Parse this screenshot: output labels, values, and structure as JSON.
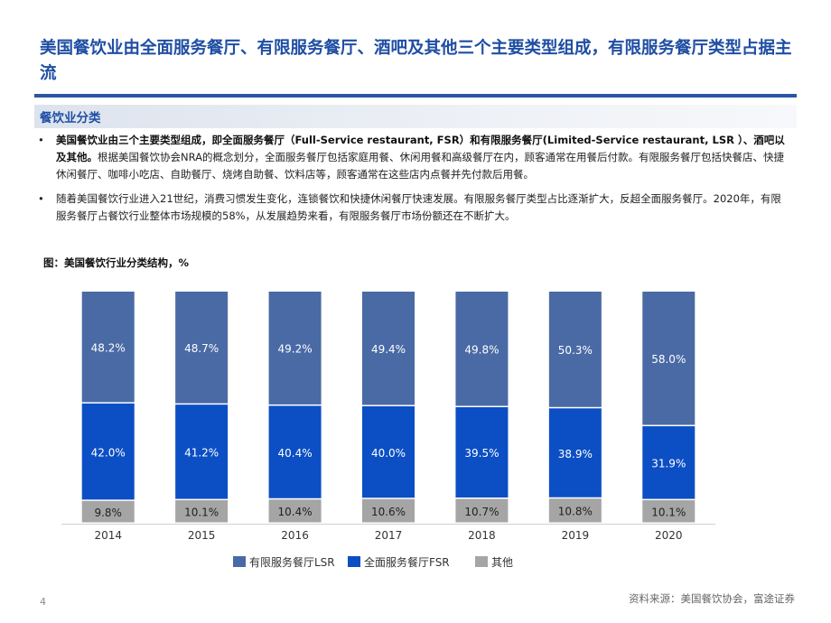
{
  "page": {
    "title": "美国餐饮业由全面服务餐厅、有限服务餐厅、酒吧及其他三个主要类型组成，有限服务餐厅类型占据主流",
    "section_label": "餐饮业分类",
    "bullets": [
      {
        "bold": "美国餐饮业由三个主要类型组成，即全面服务餐厅（Full-Service restaurant, FSR）和有限服务餐厅(Limited-Service restaurant, LSR ）、酒吧以及其他。",
        "text": "根据美国餐饮协会NRA的概念划分，全面服务餐厅包括家庭用餐、休闲用餐和高级餐厅在内，顾客通常在用餐后付款。有限服务餐厅包括快餐店、快捷休闲餐厅、咖啡小吃店、自助餐厅、烧烤自助餐、饮料店等，顾客通常在这些店内点餐并先付款后用餐。"
      },
      {
        "bold": "",
        "text": "随着美国餐饮行业进入21世纪，消费习惯发生变化，连锁餐饮和快捷休闲餐厅快速发展。有限服务餐厅类型占比逐渐扩大，反超全面服务餐厅。2020年，有限服务餐厅占餐饮行业整体市场规模的58%，从发展趋势来看，有限服务餐厅市场份额还在不断扩大。"
      }
    ],
    "bullet_marker": "•",
    "figure_caption": "图：美国餐饮行业分类结构，%",
    "page_number": "4",
    "source": "资料来源：美国餐饮协会，富途证券"
  },
  "colors": {
    "title": "#1f4ea3",
    "lsr": "#4a6aa5",
    "fsr": "#0c4fc4",
    "other": "#a5a5a5"
  },
  "chart_data": {
    "type": "bar",
    "stacked": true,
    "title": "图：美国餐饮行业分类结构，%",
    "categories": [
      "2014",
      "2015",
      "2016",
      "2017",
      "2018",
      "2019",
      "2020"
    ],
    "ylim": [
      0,
      100
    ],
    "legend_position": "bottom",
    "series": [
      {
        "name": "其他",
        "color": "#a5a5a5",
        "values": [
          9.8,
          10.1,
          10.4,
          10.6,
          10.7,
          10.8,
          10.1
        ],
        "labels": [
          "9.8%",
          "10.1%",
          "10.4%",
          "10.6%",
          "10.7%",
          "10.8%",
          "10.1%"
        ]
      },
      {
        "name": "全面服务餐厅FSR",
        "color": "#0c4fc4",
        "values": [
          42.0,
          41.2,
          40.4,
          40.0,
          39.5,
          38.9,
          31.9
        ],
        "labels": [
          "42.0%",
          "41.2%",
          "40.4%",
          "40.0%",
          "39.5%",
          "38.9%",
          "31.9%"
        ]
      },
      {
        "name": "有限服务餐厅LSR",
        "color": "#4a6aa5",
        "values": [
          48.2,
          48.7,
          49.2,
          49.4,
          49.8,
          50.3,
          58.0
        ],
        "labels": [
          "48.2%",
          "48.7%",
          "49.2%",
          "49.4%",
          "49.8%",
          "50.3%",
          "58.0%"
        ]
      }
    ],
    "legend_order": [
      "有限服务餐厅LSR",
      "全面服务餐厅FSR",
      "其他"
    ]
  }
}
